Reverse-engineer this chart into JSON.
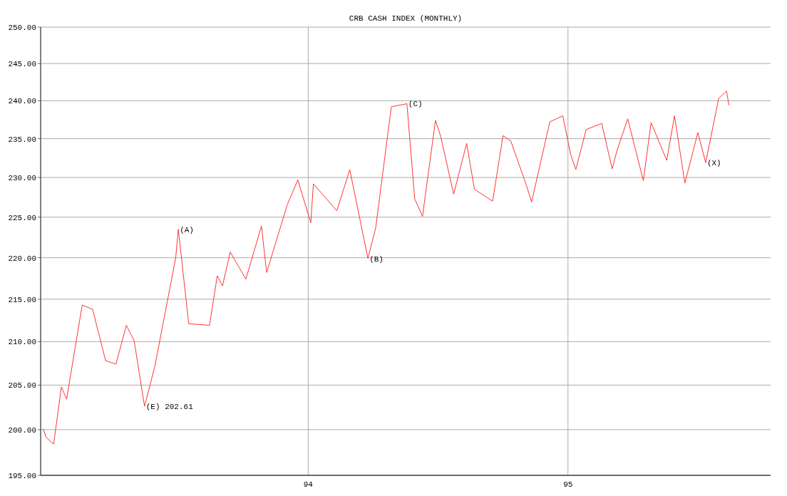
{
  "chart_data": {
    "type": "line",
    "title": "CRB CASH INDEX (MONTHLY)",
    "x": [
      92.98,
      92.99,
      93.02,
      93.05,
      93.07,
      93.13,
      93.17,
      93.22,
      93.26,
      93.3,
      93.33,
      93.37,
      93.41,
      93.49,
      93.5,
      93.54,
      93.62,
      93.65,
      93.67,
      93.7,
      93.76,
      93.82,
      93.84,
      93.92,
      93.96,
      94.01,
      94.02,
      94.11,
      94.16,
      94.23,
      94.26,
      94.32,
      94.38,
      94.41,
      94.44,
      94.49,
      94.51,
      94.56,
      94.61,
      94.64,
      94.71,
      94.75,
      94.78,
      94.84,
      94.86,
      94.93,
      94.98,
      95.01,
      95.03,
      95.07,
      95.13,
      95.17,
      95.19,
      95.23,
      95.29,
      95.32,
      95.38,
      95.41,
      95.45,
      95.5,
      95.53,
      95.58,
      95.61,
      95.62
    ],
    "series": [
      {
        "color": "#ff3333",
        "values": [
          200.1,
          199.2,
          198.4,
          204.8,
          203.4,
          214.3,
          213.8,
          207.8,
          207.4,
          211.9,
          210.1,
          202.61,
          207.2,
          220.0,
          223.5,
          212.1,
          211.9,
          217.8,
          216.6,
          220.7,
          217.4,
          223.9,
          218.2,
          226.6,
          229.7,
          224.3,
          229.2,
          225.8,
          231.0,
          219.9,
          223.7,
          239.2,
          239.6,
          227.3,
          225.1,
          237.4,
          235.3,
          227.9,
          234.4,
          228.5,
          227.0,
          235.4,
          234.7,
          229.0,
          226.9,
          237.2,
          238.0,
          233.0,
          231.0,
          236.2,
          237.0,
          231.1,
          233.6,
          237.6,
          229.6,
          237.1,
          232.2,
          238.0,
          229.3,
          235.8,
          231.9,
          240.3,
          241.3,
          239.4
        ]
      }
    ],
    "xlim": [
      92.97,
      95.78
    ],
    "xticks": [
      94,
      95
    ],
    "ylim": [
      195,
      250
    ],
    "yticks": [
      {
        "value": 195,
        "label": "195.00"
      },
      {
        "value": 200,
        "label": "200.00"
      },
      {
        "value": 205,
        "label": "205.00"
      },
      {
        "value": 210,
        "label": "210.00"
      },
      {
        "value": 215,
        "label": "215.00"
      },
      {
        "value": 220,
        "label": "220.00"
      },
      {
        "value": 225,
        "label": "225.00"
      },
      {
        "value": 230,
        "label": "230.00"
      },
      {
        "value": 235,
        "label": "235.00"
      },
      {
        "value": 240,
        "label": "240.00"
      },
      {
        "value": 245,
        "label": "245.00"
      },
      {
        "value": 250,
        "label": "250.00"
      }
    ],
    "log": true,
    "grid": true,
    "marker": "none",
    "line_style": "solid",
    "annotations": [
      {
        "text": "(A)",
        "x": 93.5,
        "y": 223.5
      },
      {
        "text": "(E) 202.61",
        "x": 93.37,
        "y": 202.61
      },
      {
        "text": "(B)",
        "x": 94.23,
        "y": 219.9
      },
      {
        "text": "(C)",
        "x": 94.38,
        "y": 239.6
      },
      {
        "text": "(X)",
        "x": 95.53,
        "y": 231.9
      }
    ]
  }
}
